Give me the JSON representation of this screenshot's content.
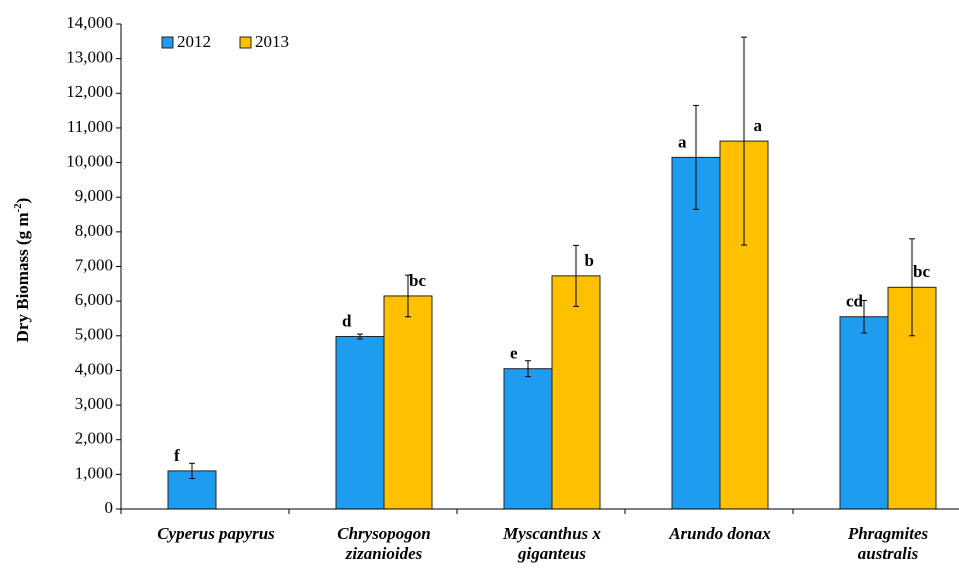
{
  "chart_data": {
    "type": "bar",
    "y_label": [
      "Dry Biomass (g m",
      "-2",
      ")"
    ],
    "categories": [
      [
        "Cyperus papyrus"
      ],
      [
        "Chrysopogon",
        "zizanioides"
      ],
      [
        "Myscanthus x",
        "giganteus"
      ],
      [
        "Arundo donax"
      ],
      [
        "Phragmites",
        "australis"
      ]
    ],
    "series": [
      {
        "name": "2012",
        "color": "#1e9cf0",
        "values": [
          1100,
          4980,
          4050,
          10150,
          5550
        ],
        "errors": [
          220,
          70,
          230,
          1500,
          470
        ],
        "letters": [
          "f",
          "d",
          "e",
          "a",
          "cd"
        ]
      },
      {
        "name": "2013",
        "color": "#ffc000",
        "values": [
          null,
          6150,
          6730,
          10620,
          6400
        ],
        "errors": [
          null,
          600,
          880,
          3000,
          1400
        ],
        "letters": [
          null,
          "bc",
          "b",
          "a",
          "bc"
        ]
      }
    ],
    "ylim": [
      0,
      14000
    ],
    "yticks": [
      0,
      {
        "value": 1000,
        "label": "1,000"
      },
      {
        "value": 2000,
        "label": "2,000"
      },
      {
        "value": 3000,
        "label": "3,000"
      },
      {
        "value": 4000,
        "label": "4,000"
      },
      {
        "value": 5000,
        "label": "5,000"
      },
      {
        "value": 6000,
        "label": "6,000"
      },
      {
        "value": 7000,
        "label": "7,000"
      },
      {
        "value": 8000,
        "label": "8,000"
      },
      {
        "value": 9000,
        "label": "9,000"
      },
      {
        "value": 10000,
        "label": "10,000"
      },
      {
        "value": 11000,
        "label": "11,000"
      },
      {
        "value": 12000,
        "label": "12,000"
      },
      {
        "value": 13000,
        "label": "13,000"
      },
      {
        "value": 14000,
        "label": "14,000"
      }
    ],
    "grid": false,
    "legend": "top-left"
  }
}
